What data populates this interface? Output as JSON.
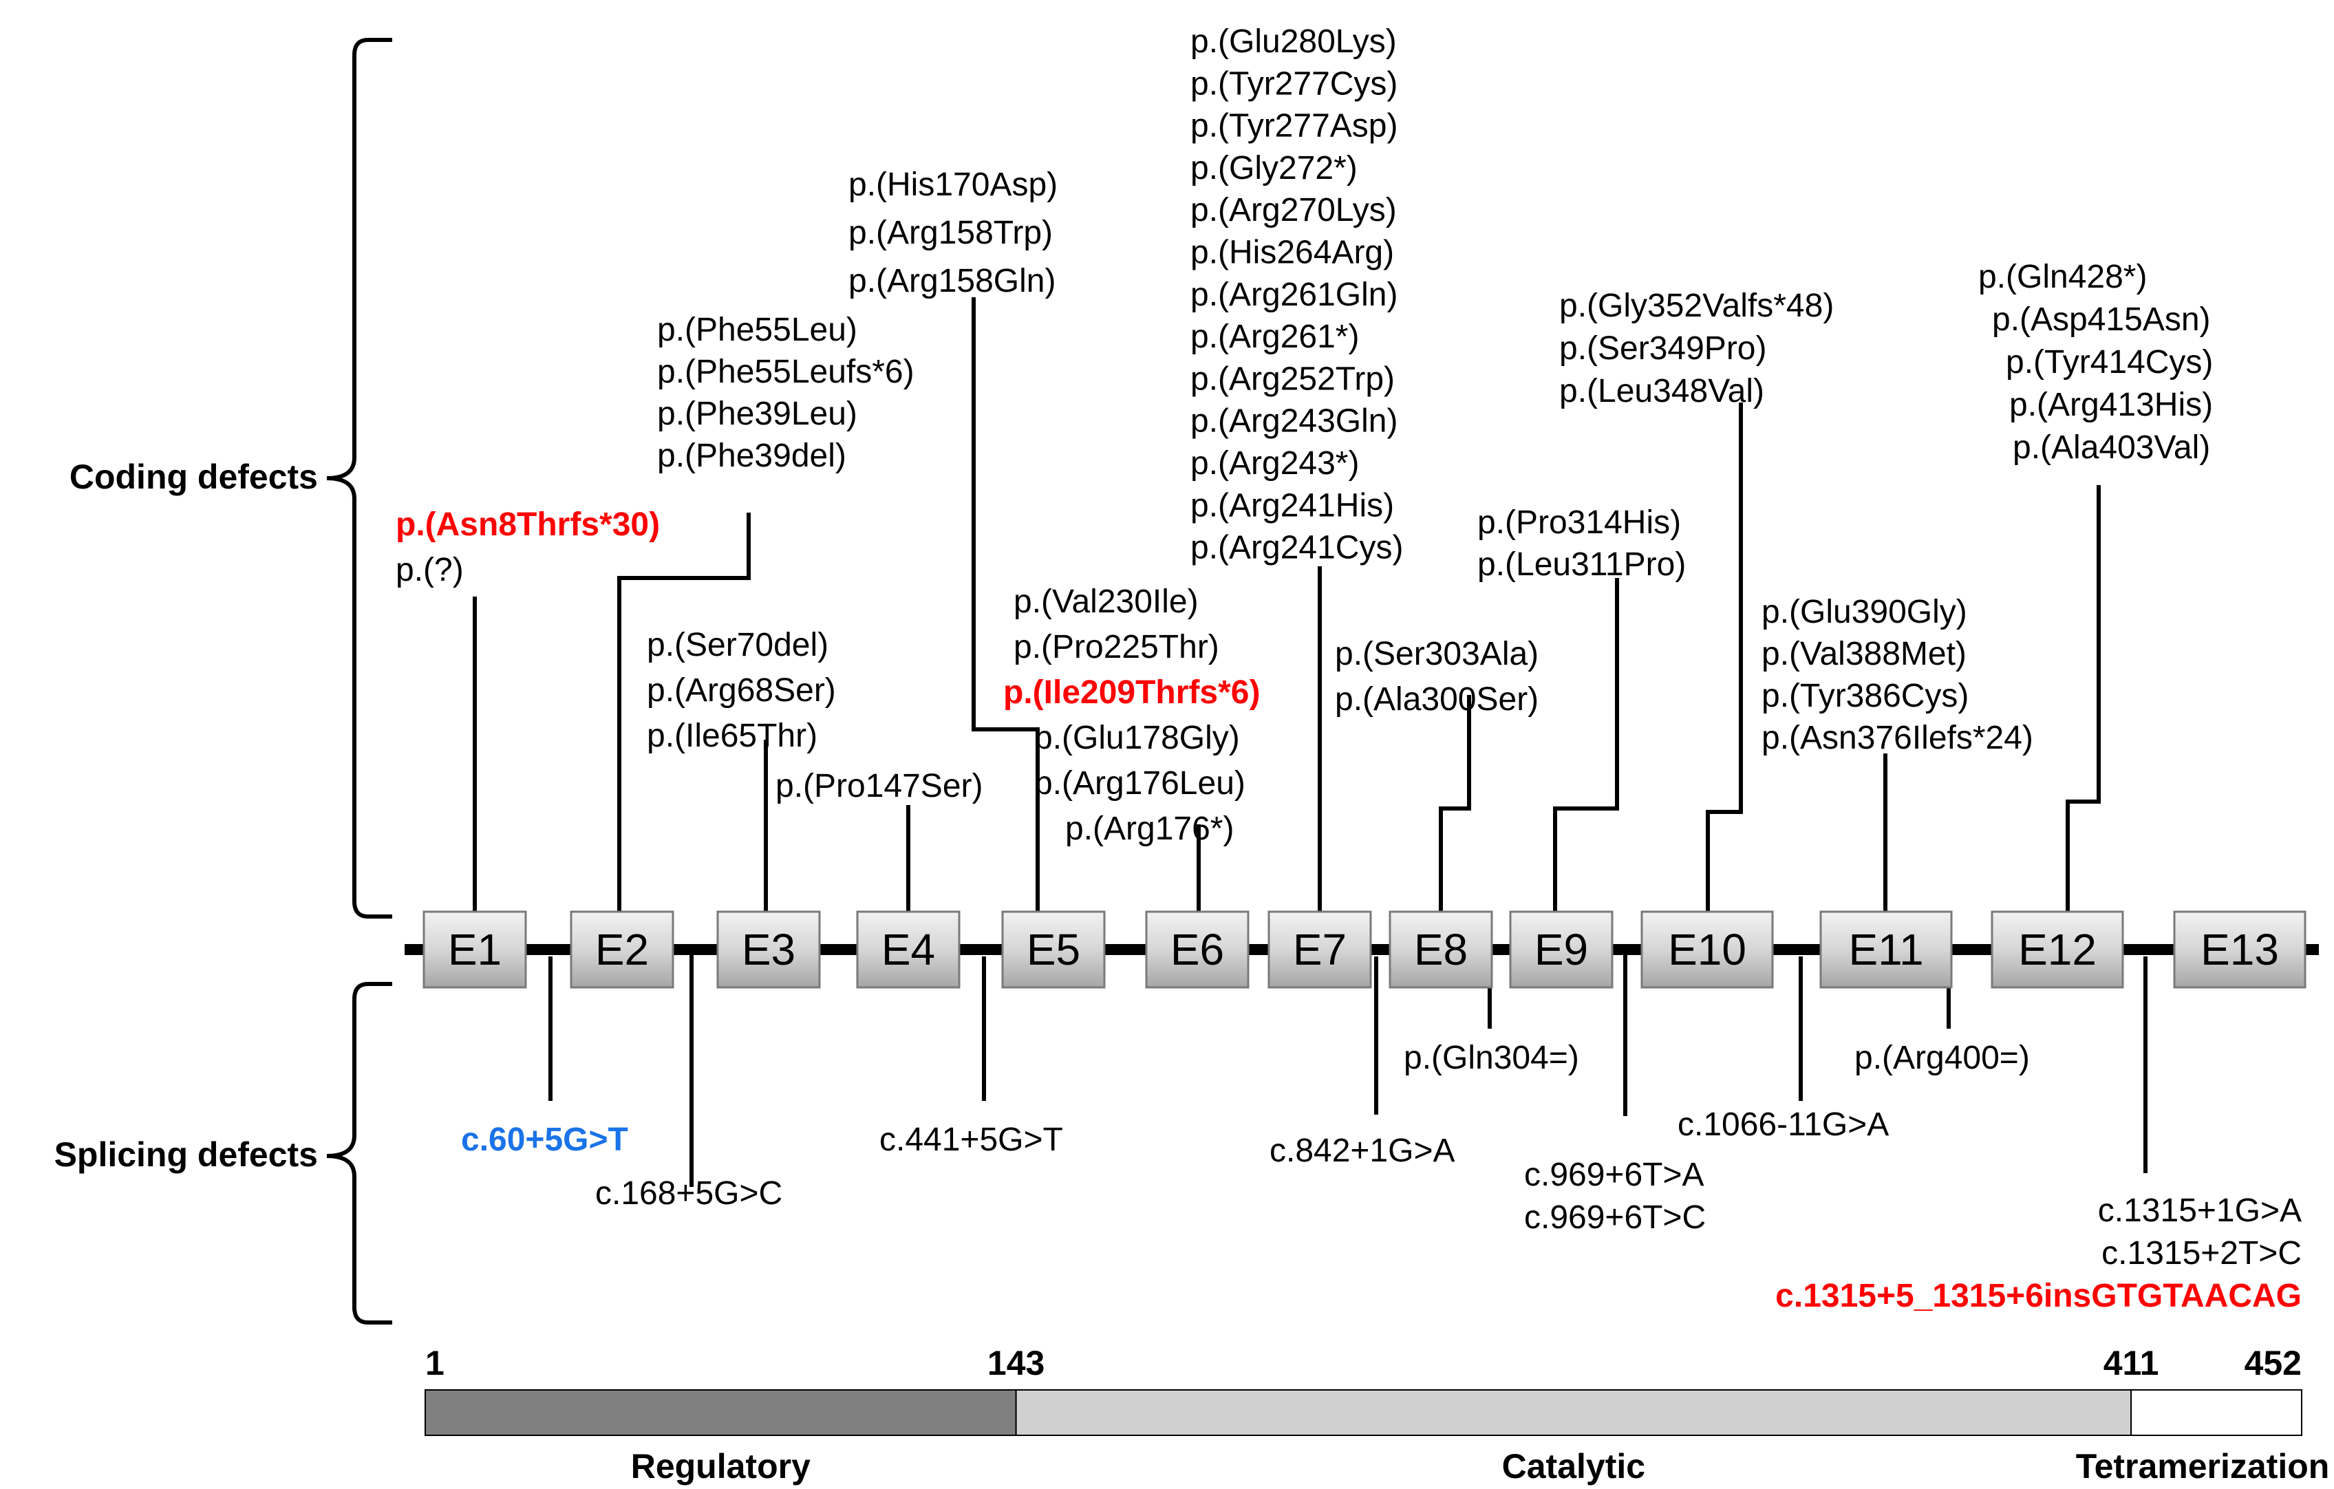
{
  "categories": {
    "coding": "Coding defects",
    "splicing": "Splicing defects"
  },
  "exons": [
    "E1",
    "E2",
    "E3",
    "E4",
    "E5",
    "E6",
    "E7",
    "E8",
    "E9",
    "E10",
    "E11",
    "E12",
    "E13"
  ],
  "coding": [
    {
      "exon": "E1",
      "labels": [
        {
          "text": "p.(Asn8Thrfs*30)",
          "color": "red"
        },
        {
          "text": "p.(?)"
        }
      ]
    },
    {
      "exon": "E2",
      "labels": [
        {
          "text": "p.(Phe55Leu)"
        },
        {
          "text": "p.(Phe55Leufs*6)"
        },
        {
          "text": "p.(Phe39Leu)"
        },
        {
          "text": "p.(Phe39del)"
        }
      ]
    },
    {
      "exon": "E3",
      "labels": [
        {
          "text": "p.(Ser70del)"
        },
        {
          "text": "p.(Arg68Ser)"
        },
        {
          "text": "p.(Ile65Thr)"
        }
      ]
    },
    {
      "exon": "E4",
      "labels": [
        {
          "text": "p.(Pro147Ser)"
        }
      ]
    },
    {
      "exon": "E5",
      "labels": [
        {
          "text": "p.(His170Asp)"
        },
        {
          "text": "p.(Arg158Trp)"
        },
        {
          "text": "p.(Arg158Gln)"
        }
      ]
    },
    {
      "exon": "E6",
      "labels": [
        {
          "text": "p.(Val230Ile)"
        },
        {
          "text": "p.(Pro225Thr)"
        },
        {
          "text": "p.(Ile209Thrfs*6)",
          "color": "red"
        },
        {
          "text": "p.(Glu178Gly)"
        },
        {
          "text": "p.(Arg176Leu)"
        },
        {
          "text": "p.(Arg176*)"
        }
      ]
    },
    {
      "exon": "E7",
      "labels": [
        {
          "text": "p.(Glu280Lys)"
        },
        {
          "text": "p.(Tyr277Cys)"
        },
        {
          "text": "p.(Tyr277Asp)"
        },
        {
          "text": "p.(Gly272*)"
        },
        {
          "text": "p.(Arg270Lys)"
        },
        {
          "text": "p.(His264Arg)"
        },
        {
          "text": "p.(Arg261Gln)"
        },
        {
          "text": "p.(Arg261*)"
        },
        {
          "text": "p.(Arg252Trp)"
        },
        {
          "text": "p.(Arg243Gln)"
        },
        {
          "text": "p.(Arg243*)"
        },
        {
          "text": "p.(Arg241His)"
        },
        {
          "text": "p.(Arg241Cys)"
        }
      ]
    },
    {
      "exon": "E8",
      "labels": [
        {
          "text": "p.(Ser303Ala)"
        },
        {
          "text": "p.(Ala300Ser)"
        }
      ]
    },
    {
      "exon": "E9",
      "labels": [
        {
          "text": "p.(Pro314His)"
        },
        {
          "text": "p.(Leu311Pro)"
        }
      ]
    },
    {
      "exon": "E10",
      "labels": [
        {
          "text": "p.(Gly352Valfs*48)"
        },
        {
          "text": "p.(Ser349Pro)"
        },
        {
          "text": "p.(Leu348Val)"
        }
      ]
    },
    {
      "exon": "E11",
      "labels": [
        {
          "text": "p.(Glu390Gly)"
        },
        {
          "text": "p.(Val388Met)"
        },
        {
          "text": "p.(Tyr386Cys)"
        },
        {
          "text": "p.(Asn376Ilefs*24)"
        }
      ]
    },
    {
      "exon": "E12",
      "labels": [
        {
          "text": "p.(Gln428*)"
        },
        {
          "text": "p.(Asp415Asn)"
        },
        {
          "text": "p.(Tyr414Cys)"
        },
        {
          "text": "p.(Arg413His)"
        },
        {
          "text": "p.(Ala403Val)"
        }
      ]
    }
  ],
  "splicing": [
    {
      "site": "IVS1",
      "labels": [
        {
          "text": "c.60+5G>T",
          "color": "blue"
        }
      ]
    },
    {
      "site": "IVS2",
      "labels": [
        {
          "text": "c.168+5G>C"
        }
      ]
    },
    {
      "site": "IVS4",
      "labels": [
        {
          "text": "c.441+5G>T"
        }
      ]
    },
    {
      "site": "IVS7",
      "labels": [
        {
          "text": "c.842+1G>A"
        }
      ]
    },
    {
      "site": "E8",
      "labels": [
        {
          "text": "p.(Gln304=)"
        }
      ]
    },
    {
      "site": "IVS9",
      "labels": [
        {
          "text": "c.969+6T>A"
        },
        {
          "text": "c.969+6T>C"
        }
      ]
    },
    {
      "site": "IVS10",
      "labels": [
        {
          "text": "c.1066-11G>A"
        }
      ]
    },
    {
      "site": "E11",
      "labels": [
        {
          "text": "p.(Arg400=)"
        }
      ]
    },
    {
      "site": "IVS12",
      "labels": [
        {
          "text": "c.1315+1G>A"
        },
        {
          "text": "c.1315+2T>C"
        },
        {
          "text": "c.1315+5_1315+6insGTGTAACAG",
          "color": "red"
        }
      ]
    }
  ],
  "domains": {
    "numbers": [
      "1",
      "143",
      "411",
      "452"
    ],
    "items": [
      {
        "name": "Regulatory",
        "start": 1,
        "end": 143,
        "color": "#808080"
      },
      {
        "name": "Catalytic",
        "start": 143,
        "end": 411,
        "color": "#d0d0d0"
      },
      {
        "name": "Tetramerization",
        "start": 411,
        "end": 452,
        "color": "#ffffff"
      }
    ]
  }
}
